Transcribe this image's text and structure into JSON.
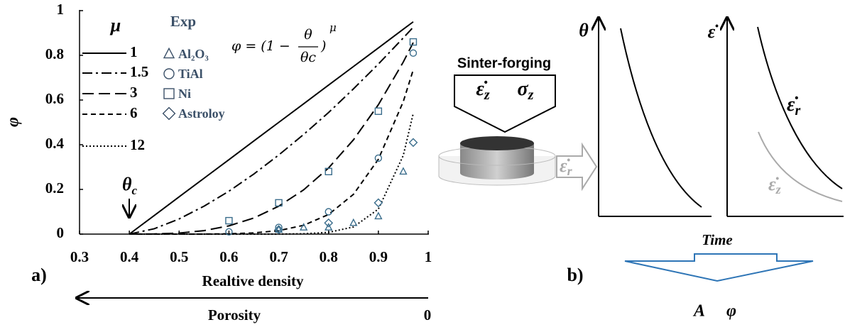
{
  "chart_data": {
    "type": "line",
    "x_label": "Realtive density",
    "y_label": "φ",
    "porosity_label": "Porosity",
    "porosity_end": 0,
    "panel_label": "a)",
    "critical_label": {
      "main": "θ",
      "sub": "c"
    },
    "legend_title_lines": "μ",
    "legend_title_exp": "Exp",
    "formula": {
      "lhs": "φ = (1 −",
      "num": "θ",
      "den": "θc",
      "rhs": ")",
      "exp": "μ"
    },
    "xlim": [
      0.3,
      1
    ],
    "ylim": [
      0,
      1
    ],
    "xticks": [
      0.3,
      0.4,
      0.5,
      0.6,
      0.7,
      0.8,
      0.9,
      1
    ],
    "yticks": [
      0,
      0.2,
      0.4,
      0.6,
      0.8,
      1
    ],
    "x": [
      0.4,
      0.45,
      0.5,
      0.55,
      0.6,
      0.65,
      0.7,
      0.75,
      0.8,
      0.85,
      0.9,
      0.95,
      0.97
    ],
    "series": [
      {
        "name": "1",
        "color": "#000000",
        "dash": "none",
        "values": [
          0,
          0.083,
          0.167,
          0.25,
          0.333,
          0.417,
          0.5,
          0.583,
          0.667,
          0.75,
          0.833,
          0.917,
          0.95
        ]
      },
      {
        "name": "1.5",
        "color": "#000000",
        "dash": "14 5 3 5",
        "values": [
          0,
          0.024,
          0.068,
          0.125,
          0.192,
          0.269,
          0.354,
          0.446,
          0.544,
          0.65,
          0.761,
          0.878,
          0.926
        ]
      },
      {
        "name": "3",
        "color": "#000000",
        "dash": "16 7",
        "values": [
          0,
          0.0006,
          0.0046,
          0.0156,
          0.037,
          0.072,
          0.125,
          0.198,
          0.296,
          0.422,
          0.579,
          0.77,
          0.857
        ]
      },
      {
        "name": "6",
        "color": "#000000",
        "dash": "7 5",
        "values": [
          0,
          0,
          0,
          0.0002,
          0.0014,
          0.0052,
          0.0156,
          0.0394,
          0.0878,
          0.178,
          0.335,
          0.593,
          0.735
        ]
      },
      {
        "name": "12",
        "color": "#000000",
        "dash": "2 3",
        "values": [
          0,
          0,
          0,
          0,
          0,
          0,
          0.0002,
          0.0015,
          0.0077,
          0.032,
          0.112,
          0.352,
          0.54
        ]
      }
    ],
    "experiments": [
      {
        "name": "Al₂O₃",
        "marker": "triangle",
        "color": "#3a6d8c",
        "x": [
          0.7,
          0.75,
          0.8,
          0.85,
          0.9,
          0.95
        ],
        "values": [
          0.02,
          0.03,
          0.03,
          0.05,
          0.08,
          0.28
        ]
      },
      {
        "name": "TiAl",
        "marker": "circle",
        "color": "#3a6d8c",
        "x": [
          0.6,
          0.7,
          0.8,
          0.9,
          0.97
        ],
        "values": [
          0.01,
          0.03,
          0.1,
          0.34,
          0.81
        ]
      },
      {
        "name": "Ni",
        "marker": "square",
        "color": "#3a6d8c",
        "x": [
          0.6,
          0.7,
          0.8,
          0.9,
          0.97
        ],
        "values": [
          0.06,
          0.14,
          0.28,
          0.55,
          0.86
        ]
      },
      {
        "name": "Astroloy",
        "marker": "diamond",
        "color": "#3a6d8c",
        "x": [
          0.7,
          0.8,
          0.9,
          0.97
        ],
        "values": [
          0.02,
          0.05,
          0.14,
          0.41
        ]
      }
    ]
  },
  "diagram": {
    "title": "Sinter-forging",
    "load": {
      "strain": {
        "main": "ε̇",
        "sub": "z"
      },
      "stress": {
        "main": "σ",
        "sub": "z"
      }
    },
    "radial": {
      "main": "ε̇",
      "sub": "r"
    },
    "left_axis": "θ",
    "right_axis": "ε̇",
    "curve_r": {
      "main": "ε̇",
      "sub": "r"
    },
    "curve_z": {
      "main": "ε̇",
      "sub": "z"
    },
    "time": "Time",
    "panel_label": "b)",
    "result": {
      "a": "A",
      "phi": "φ"
    }
  }
}
